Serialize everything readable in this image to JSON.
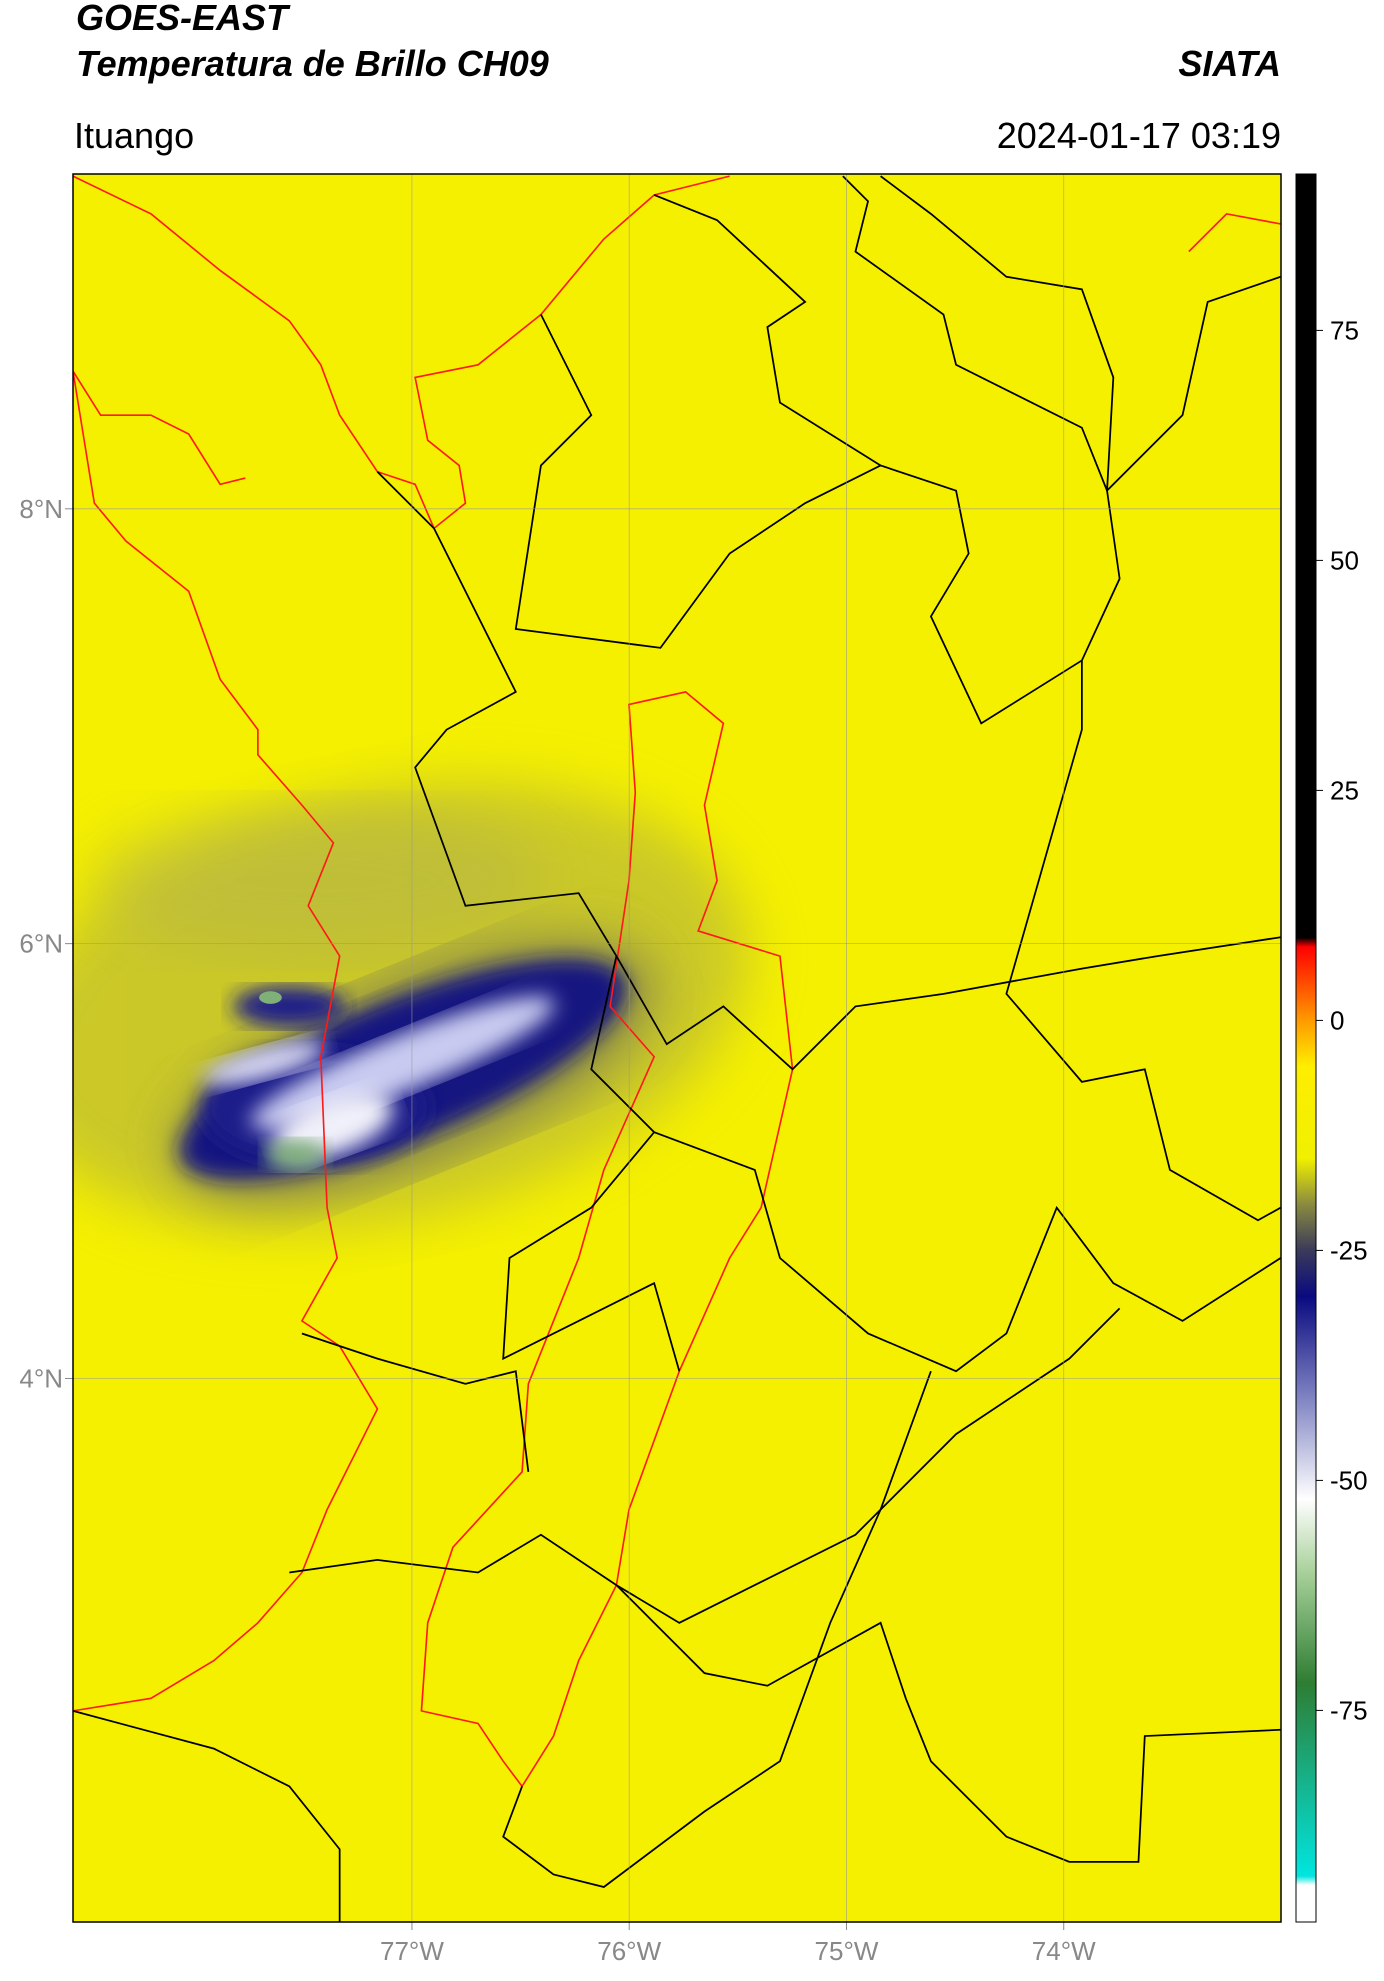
{
  "header": {
    "satellite": "GOES-EAST",
    "product": "Temperatura de Brillo CH09",
    "org": "SIATA",
    "place": "Ituango",
    "datetime": "2024-01-17 03:19"
  },
  "map": {
    "xlim": [
      -78.56,
      -73.0
    ],
    "ylim": [
      1.5,
      9.54
    ],
    "xticks": [
      {
        "value": -77,
        "label": "77°W"
      },
      {
        "value": -76,
        "label": "76°W"
      },
      {
        "value": -75,
        "label": "75°W"
      },
      {
        "value": -74,
        "label": "74°W"
      }
    ],
    "yticks": [
      {
        "value": 8,
        "label": "8°N"
      },
      {
        "value": 6,
        "label": "6°N"
      },
      {
        "value": 4,
        "label": "4°N"
      }
    ],
    "grid": true,
    "background": "#f5f000"
  },
  "colorbar": {
    "clim": [
      -98,
      92
    ],
    "ticks": [
      75,
      50,
      25,
      0,
      -25,
      -50,
      -75
    ],
    "stops": [
      {
        "value": -98,
        "color": "#ffffff"
      },
      {
        "value": -94,
        "color": "#ffffff"
      },
      {
        "value": -93,
        "color": "#00e5e0"
      },
      {
        "value": -72,
        "color": "#2e7d32"
      },
      {
        "value": -60,
        "color": "#a8d19a"
      },
      {
        "value": -52,
        "color": "#ffffff"
      },
      {
        "value": -42,
        "color": "#8a8ec8"
      },
      {
        "value": -30,
        "color": "#0a0a80"
      },
      {
        "value": -25,
        "color": "#3a3a5a"
      },
      {
        "value": -20,
        "color": "#8a8a40"
      },
      {
        "value": -15,
        "color": "#f0f000"
      },
      {
        "value": -5,
        "color": "#ffee00"
      },
      {
        "value": 0,
        "color": "#ff9a00"
      },
      {
        "value": 8,
        "color": "#ff0000"
      },
      {
        "value": 9,
        "color": "#000000"
      },
      {
        "value": 92,
        "color": "#000000"
      }
    ]
  }
}
